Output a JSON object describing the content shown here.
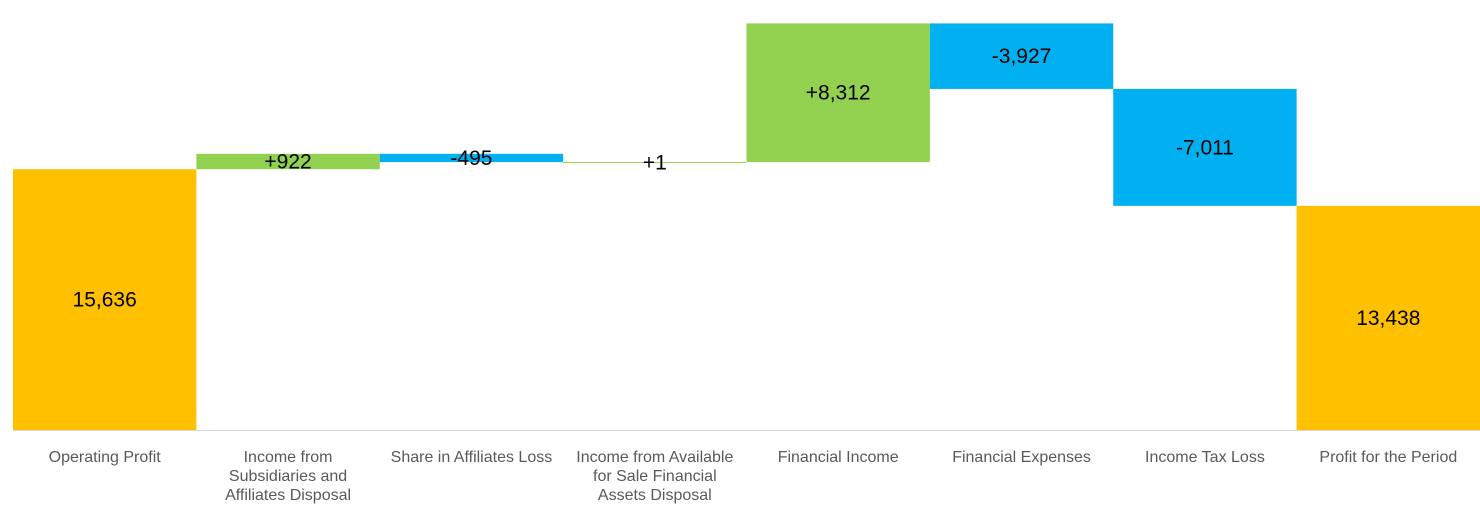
{
  "chart_data": {
    "type": "waterfall",
    "categories": [
      [
        "Operating Profit"
      ],
      [
        "Income from",
        "Subsidiaries and",
        "Affiliates Disposal"
      ],
      [
        "Share in Affiliates Loss"
      ],
      [
        "Income from Available",
        "for Sale Financial",
        "Assets Disposal"
      ],
      [
        "Financial Income"
      ],
      [
        "Financial Expenses"
      ],
      [
        "Income Tax Loss"
      ],
      [
        "Profit for the Period"
      ]
    ],
    "steps": [
      {
        "kind": "total",
        "value": 15636,
        "label": "15,636"
      },
      {
        "kind": "delta",
        "value": 922,
        "label": "+922"
      },
      {
        "kind": "delta",
        "value": -495,
        "label": "-495"
      },
      {
        "kind": "delta",
        "value": 1,
        "label": "+1"
      },
      {
        "kind": "delta",
        "value": 8312,
        "label": "+8,312"
      },
      {
        "kind": "delta",
        "value": -3927,
        "label": "-3,927"
      },
      {
        "kind": "delta",
        "value": -7011,
        "label": "-7,011"
      },
      {
        "kind": "total",
        "value": 13438,
        "label": "13,438"
      }
    ],
    "ylim": [
      0,
      25000
    ],
    "colors": {
      "total": "#FFC000",
      "increase": "#92D050",
      "decrease": "#00B0F0"
    },
    "grid": false,
    "legend": "none"
  }
}
